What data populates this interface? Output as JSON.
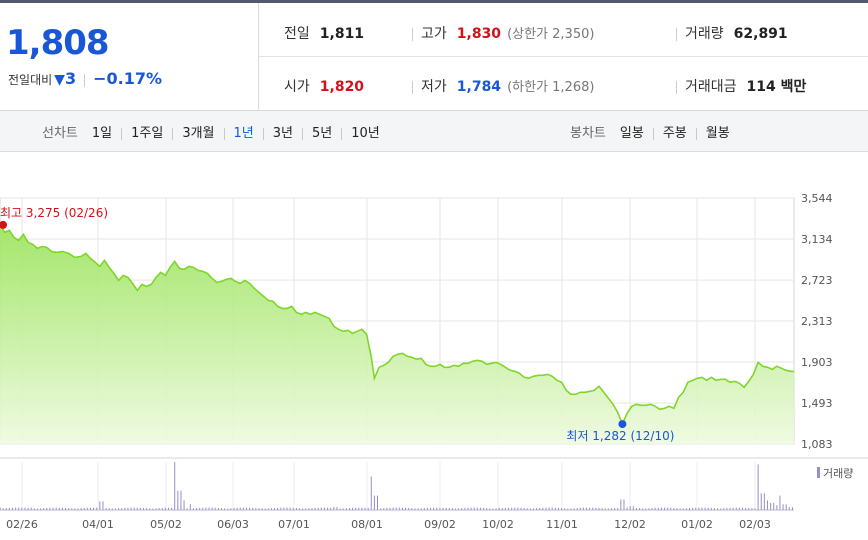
{
  "summary": {
    "current_price": "1,808",
    "change_label": "전일대비",
    "change_arrow": "▼",
    "change_amount": "3",
    "change_pct": "−0.17%",
    "prev_close_label": "전일",
    "prev_close": "1,811",
    "high_label": "고가",
    "high": "1,830",
    "upper_limit": "(상한가 2,350)",
    "volume_label": "거래량",
    "volume": "62,891",
    "open_label": "시가",
    "open": "1,820",
    "low_label": "저가",
    "low": "1,784",
    "lower_limit": "(하한가 1,268)",
    "value_label": "거래대금",
    "value": "114 백만"
  },
  "toolbar": {
    "line_label": "선차트",
    "periods": [
      "1일",
      "1주일",
      "3개월",
      "1년",
      "3년",
      "5년",
      "10년"
    ],
    "active_period": "1년",
    "candle_label": "봉차트",
    "candles": [
      "일봉",
      "주봉",
      "월봉"
    ]
  },
  "colors": {
    "up": "#d4111a",
    "down": "#1a57d6",
    "line": "#7fd62a"
  },
  "chart_data": {
    "type": "area",
    "yticks": [
      3544,
      3134,
      2723,
      2313,
      1903,
      1493,
      1083
    ],
    "ylim": [
      1083,
      3544
    ],
    "xticks": [
      "02/26",
      "04/01",
      "05/02",
      "06/03",
      "07/01",
      "08/01",
      "09/02",
      "10/02",
      "11/01",
      "12/02",
      "01/02",
      "02/03"
    ],
    "high_annotation": "최고 3,275 (02/26)",
    "low_annotation": "최저 1,282 (12/10)",
    "price_series": [
      [
        0,
        3275
      ],
      [
        3,
        3200
      ],
      [
        6,
        3220
      ],
      [
        9,
        3150
      ],
      [
        12,
        3120
      ],
      [
        15,
        3180
      ],
      [
        18,
        3100
      ],
      [
        21,
        3080
      ],
      [
        24,
        3040
      ],
      [
        27,
        3060
      ],
      [
        30,
        3050
      ],
      [
        33,
        3010
      ],
      [
        36,
        3000
      ],
      [
        40,
        3010
      ],
      [
        44,
        2990
      ],
      [
        48,
        2950
      ],
      [
        52,
        2960
      ],
      [
        55,
        2990
      ],
      [
        58,
        2940
      ],
      [
        61,
        2900
      ],
      [
        64,
        2860
      ],
      [
        67,
        2920
      ],
      [
        70,
        2850
      ],
      [
        73,
        2790
      ],
      [
        76,
        2720
      ],
      [
        79,
        2770
      ],
      [
        82,
        2750
      ],
      [
        85,
        2690
      ],
      [
        88,
        2620
      ],
      [
        91,
        2680
      ],
      [
        94,
        2660
      ],
      [
        97,
        2680
      ],
      [
        100,
        2750
      ],
      [
        103,
        2800
      ],
      [
        106,
        2770
      ],
      [
        109,
        2850
      ],
      [
        112,
        2910
      ],
      [
        115,
        2840
      ],
      [
        118,
        2830
      ],
      [
        121,
        2860
      ],
      [
        124,
        2850
      ],
      [
        127,
        2820
      ],
      [
        130,
        2810
      ],
      [
        133,
        2790
      ],
      [
        136,
        2740
      ],
      [
        139,
        2700
      ],
      [
        142,
        2710
      ],
      [
        145,
        2730
      ],
      [
        148,
        2740
      ],
      [
        151,
        2710
      ],
      [
        154,
        2690
      ],
      [
        157,
        2720
      ],
      [
        160,
        2690
      ],
      [
        163,
        2640
      ],
      [
        166,
        2600
      ],
      [
        169,
        2560
      ],
      [
        172,
        2520
      ],
      [
        175,
        2510
      ],
      [
        178,
        2460
      ],
      [
        181,
        2440
      ],
      [
        184,
        2440
      ],
      [
        187,
        2460
      ],
      [
        190,
        2400
      ],
      [
        193,
        2380
      ],
      [
        196,
        2400
      ],
      [
        199,
        2380
      ],
      [
        202,
        2400
      ],
      [
        205,
        2380
      ],
      [
        208,
        2360
      ],
      [
        211,
        2340
      ],
      [
        214,
        2260
      ],
      [
        217,
        2230
      ],
      [
        220,
        2210
      ],
      [
        223,
        2220
      ],
      [
        226,
        2190
      ],
      [
        229,
        2210
      ],
      [
        232,
        2230
      ],
      [
        235,
        2180
      ],
      [
        238,
        1950
      ],
      [
        240,
        1740
      ],
      [
        243,
        1850
      ],
      [
        246,
        1870
      ],
      [
        249,
        1900
      ],
      [
        252,
        1960
      ],
      [
        255,
        1980
      ],
      [
        258,
        1990
      ],
      [
        261,
        1960
      ],
      [
        264,
        1950
      ],
      [
        267,
        1930
      ],
      [
        270,
        1940
      ],
      [
        273,
        1880
      ],
      [
        276,
        1860
      ],
      [
        279,
        1860
      ],
      [
        282,
        1880
      ],
      [
        285,
        1850
      ],
      [
        288,
        1850
      ],
      [
        291,
        1870
      ],
      [
        294,
        1860
      ],
      [
        297,
        1890
      ],
      [
        300,
        1890
      ],
      [
        303,
        1910
      ],
      [
        306,
        1920
      ],
      [
        309,
        1910
      ],
      [
        312,
        1880
      ],
      [
        315,
        1890
      ],
      [
        318,
        1900
      ],
      [
        321,
        1880
      ],
      [
        324,
        1850
      ],
      [
        327,
        1820
      ],
      [
        330,
        1810
      ],
      [
        333,
        1790
      ],
      [
        336,
        1750
      ],
      [
        339,
        1740
      ],
      [
        342,
        1760
      ],
      [
        345,
        1770
      ],
      [
        348,
        1770
      ],
      [
        351,
        1780
      ],
      [
        354,
        1760
      ],
      [
        357,
        1720
      ],
      [
        360,
        1700
      ],
      [
        363,
        1620
      ],
      [
        366,
        1580
      ],
      [
        369,
        1580
      ],
      [
        372,
        1600
      ],
      [
        375,
        1600
      ],
      [
        378,
        1610
      ],
      [
        381,
        1620
      ],
      [
        384,
        1660
      ],
      [
        387,
        1600
      ],
      [
        390,
        1540
      ],
      [
        393,
        1480
      ],
      [
        396,
        1400
      ],
      [
        399,
        1282
      ],
      [
        402,
        1390
      ],
      [
        405,
        1460
      ],
      [
        408,
        1480
      ],
      [
        411,
        1470
      ],
      [
        414,
        1470
      ],
      [
        417,
        1480
      ],
      [
        420,
        1460
      ],
      [
        423,
        1430
      ],
      [
        426,
        1440
      ],
      [
        429,
        1460
      ],
      [
        432,
        1440
      ],
      [
        435,
        1550
      ],
      [
        438,
        1600
      ],
      [
        441,
        1700
      ],
      [
        444,
        1720
      ],
      [
        447,
        1740
      ],
      [
        450,
        1750
      ],
      [
        453,
        1720
      ],
      [
        456,
        1750
      ],
      [
        459,
        1720
      ],
      [
        462,
        1730
      ],
      [
        465,
        1730
      ],
      [
        468,
        1700
      ],
      [
        471,
        1710
      ],
      [
        474,
        1690
      ],
      [
        477,
        1650
      ],
      [
        480,
        1710
      ],
      [
        483,
        1780
      ],
      [
        486,
        1900
      ],
      [
        489,
        1860
      ],
      [
        492,
        1850
      ],
      [
        495,
        1830
      ],
      [
        498,
        1860
      ],
      [
        501,
        1840
      ],
      [
        504,
        1820
      ],
      [
        507,
        1810
      ],
      [
        509,
        1808
      ]
    ],
    "volume_series": [
      [
        0,
        0.06
      ],
      [
        20,
        0.05
      ],
      [
        40,
        0.04
      ],
      [
        65,
        0.18
      ],
      [
        80,
        0.05
      ],
      [
        100,
        0.03
      ],
      [
        112,
        1.0
      ],
      [
        115,
        0.4
      ],
      [
        118,
        0.2
      ],
      [
        122,
        0.12
      ],
      [
        135,
        0.05
      ],
      [
        160,
        0.04
      ],
      [
        185,
        0.05
      ],
      [
        200,
        0.04
      ],
      [
        215,
        0.06
      ],
      [
        238,
        0.7
      ],
      [
        241,
        0.3
      ],
      [
        260,
        0.05
      ],
      [
        290,
        0.04
      ],
      [
        320,
        0.05
      ],
      [
        350,
        0.04
      ],
      [
        375,
        0.05
      ],
      [
        399,
        0.22
      ],
      [
        405,
        0.08
      ],
      [
        430,
        0.04
      ],
      [
        450,
        0.05
      ],
      [
        475,
        0.04
      ],
      [
        486,
        0.95
      ],
      [
        489,
        0.35
      ],
      [
        492,
        0.2
      ],
      [
        495,
        0.15
      ],
      [
        498,
        0.1
      ],
      [
        500,
        0.3
      ],
      [
        503,
        0.12
      ],
      [
        507,
        0.06
      ]
    ],
    "legend": "거래량"
  }
}
